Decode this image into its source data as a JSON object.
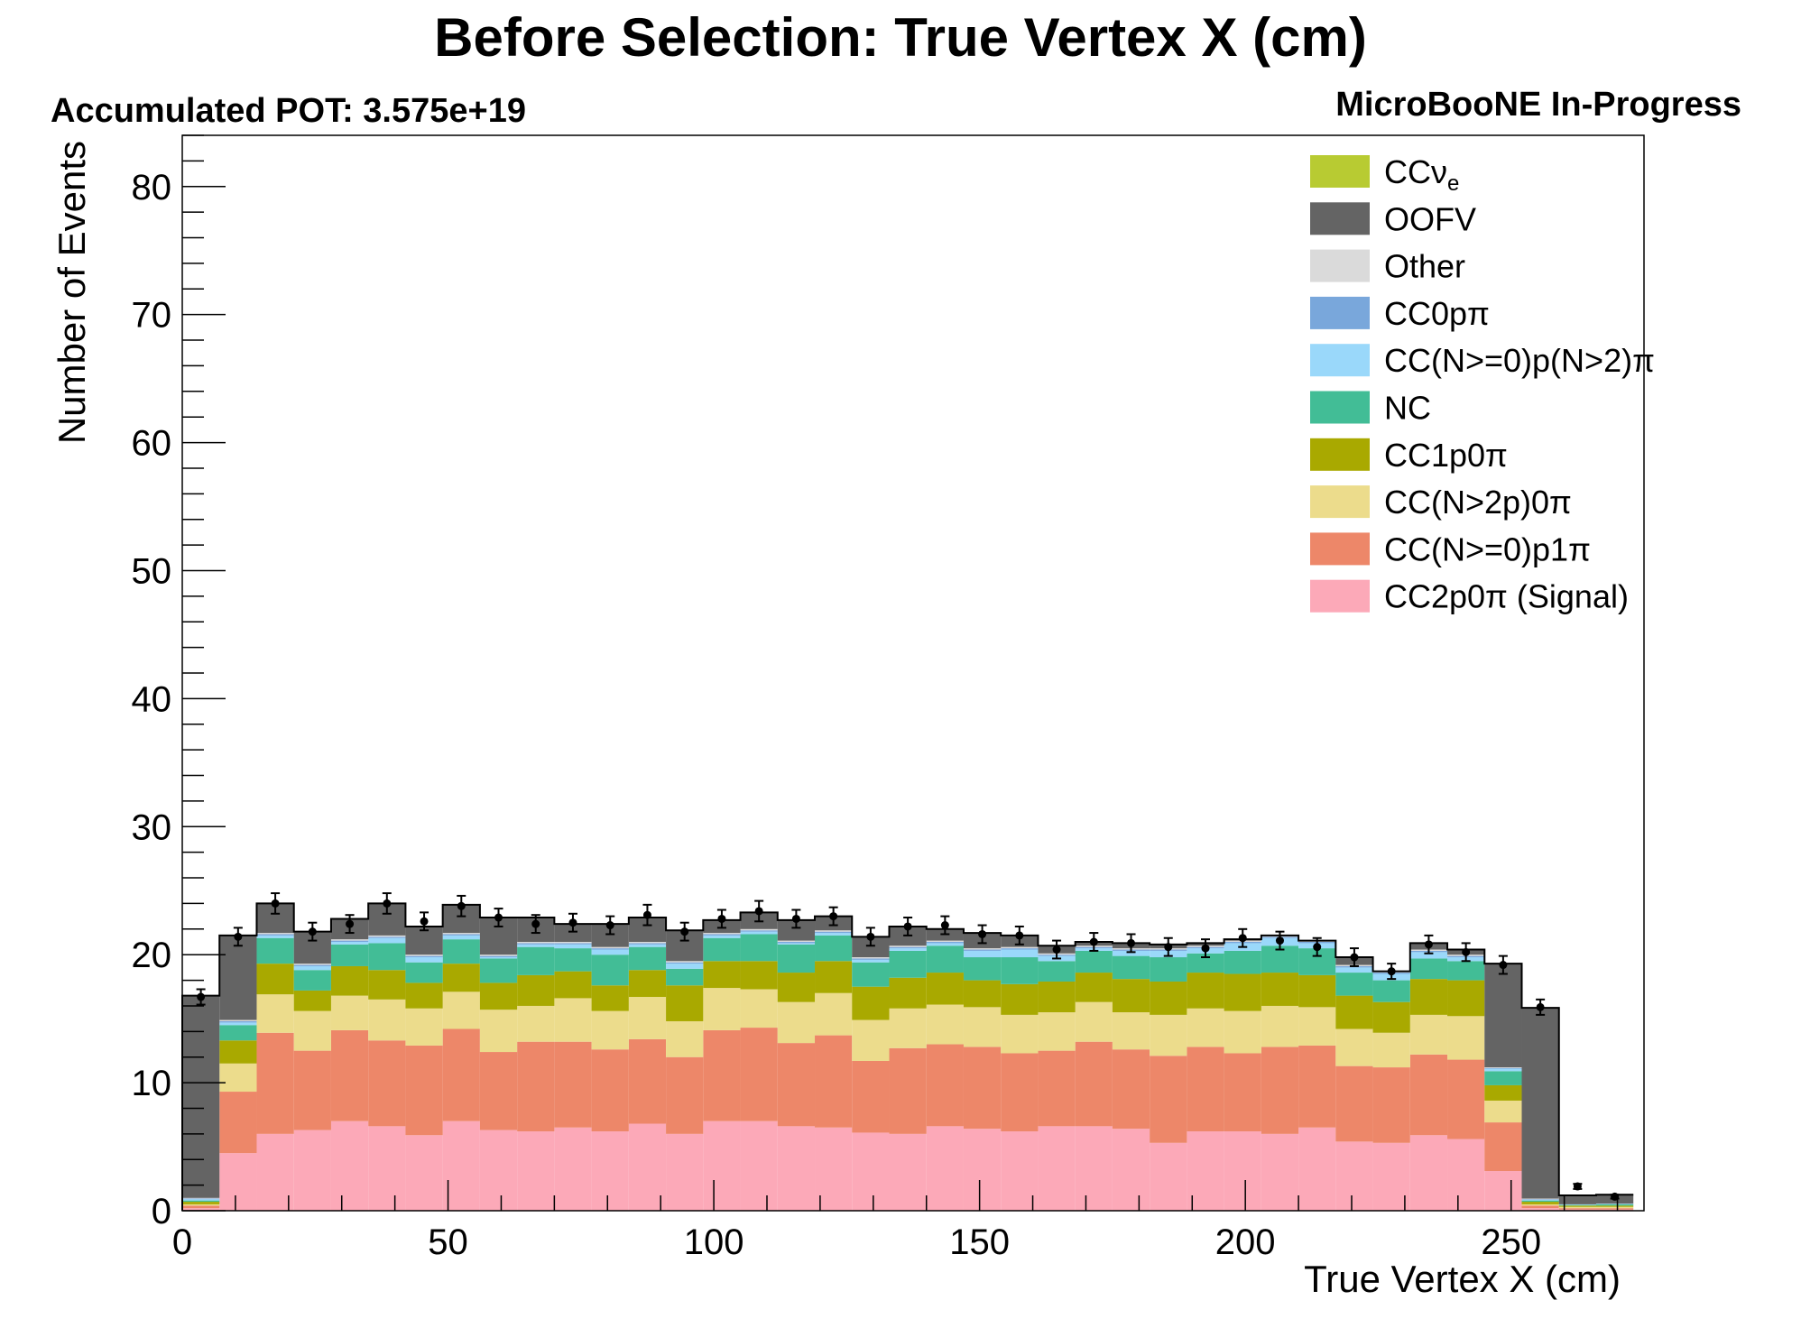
{
  "chart_data": {
    "type": "bar",
    "stacked": true,
    "title": "Before Selection: True Vertex X (cm)",
    "pot_label": "Accumulated POT: 3.575e+19",
    "experiment_label": "MicroBooNE In-Progress",
    "xlabel": "True Vertex X (cm)",
    "ylabel": "Number of Events",
    "xlim": [
      0,
      275
    ],
    "ylim": [
      0,
      84
    ],
    "x_ticks": [
      0,
      50,
      100,
      150,
      200,
      250
    ],
    "y_ticks": [
      0,
      10,
      20,
      30,
      40,
      50,
      60,
      70,
      80
    ],
    "legend_position": "top-right",
    "bin_edges": [
      0,
      7,
      14,
      21,
      28,
      35,
      42,
      49,
      56,
      63,
      70,
      77,
      84,
      91,
      98,
      105,
      112,
      119,
      126,
      133,
      140,
      147,
      154,
      161,
      168,
      175,
      182,
      189,
      196,
      203,
      210,
      217,
      224,
      231,
      238,
      245,
      252,
      259,
      266,
      273
    ],
    "series": [
      {
        "name": "CC2p0π (Signal)",
        "color": "#fca9b8",
        "values": [
          0.2,
          4.5,
          6.0,
          6.3,
          7.0,
          6.6,
          5.9,
          7.0,
          6.3,
          6.2,
          6.5,
          6.2,
          6.8,
          6.0,
          7.0,
          7.0,
          6.6,
          6.5,
          6.1,
          6.0,
          6.6,
          6.4,
          6.2,
          6.6,
          6.6,
          6.4,
          5.3,
          6.2,
          6.2,
          6.0,
          6.5,
          5.4,
          5.3,
          5.9,
          5.6,
          3.1,
          0.2,
          0.1,
          0.1
        ]
      },
      {
        "name": "CC(N>=0)p1π",
        "color": "#ed8769",
        "values": [
          0.2,
          4.8,
          7.9,
          6.2,
          7.1,
          6.7,
          7.0,
          7.2,
          6.1,
          7.0,
          6.7,
          6.4,
          6.6,
          6.0,
          7.1,
          7.3,
          6.5,
          7.2,
          5.6,
          6.7,
          6.4,
          6.4,
          6.1,
          5.9,
          6.6,
          6.2,
          6.8,
          6.6,
          6.1,
          6.8,
          6.4,
          5.9,
          5.9,
          6.3,
          6.2,
          3.8,
          0.2,
          0.1,
          0.1
        ]
      },
      {
        "name": "CC(N>2p)0π",
        "color": "#ecdc8c",
        "values": [
          0.1,
          2.2,
          3.0,
          3.1,
          2.7,
          3.2,
          2.9,
          2.9,
          3.3,
          2.8,
          3.4,
          3.0,
          3.3,
          2.8,
          3.3,
          3.0,
          3.2,
          3.3,
          3.2,
          3.1,
          3.1,
          3.1,
          3.0,
          3.0,
          3.1,
          2.9,
          3.2,
          3.0,
          3.3,
          3.2,
          3.0,
          2.9,
          2.7,
          3.1,
          3.4,
          1.7,
          0.1,
          0.1,
          0.1
        ]
      },
      {
        "name": "CC1p0π",
        "color": "#a9a900",
        "values": [
          0.2,
          1.8,
          2.4,
          1.6,
          2.3,
          2.3,
          2.0,
          2.2,
          2.1,
          2.4,
          2.1,
          2.0,
          2.1,
          2.8,
          2.1,
          2.2,
          2.3,
          2.5,
          2.6,
          2.4,
          2.5,
          2.1,
          2.4,
          2.4,
          2.3,
          2.6,
          2.6,
          2.8,
          2.9,
          2.6,
          2.5,
          2.6,
          2.4,
          2.8,
          2.8,
          1.2,
          0.2,
          0.1,
          0.1
        ]
      },
      {
        "name": "NC",
        "color": "#42bd96",
        "values": [
          0.1,
          1.2,
          2.0,
          1.6,
          1.7,
          2.1,
          1.6,
          1.9,
          1.9,
          2.2,
          1.8,
          2.4,
          1.8,
          1.3,
          1.8,
          2.1,
          2.2,
          2.0,
          1.9,
          2.1,
          2.1,
          1.8,
          2.1,
          1.6,
          1.7,
          1.8,
          1.9,
          1.5,
          1.8,
          2.1,
          2.1,
          1.8,
          1.7,
          1.6,
          1.5,
          1.1,
          0.1,
          0.05,
          0.1
        ]
      },
      {
        "name": "CC(N>=0)p(N>2)π",
        "color": "#9ad8fa",
        "values": [
          0.1,
          0.2,
          0.2,
          0.3,
          0.2,
          0.4,
          0.4,
          0.3,
          0.1,
          0.2,
          0.3,
          0.4,
          0.2,
          0.4,
          0.2,
          0.2,
          0.1,
          0.2,
          0.2,
          0.2,
          0.2,
          0.5,
          0.6,
          0.4,
          0.2,
          0.4,
          0.5,
          0.4,
          0.6,
          0.6,
          0.4,
          0.4,
          0.5,
          0.5,
          0.3,
          0.2,
          0.05,
          0.05,
          0.05
        ]
      },
      {
        "name": "CC0pπ",
        "color": "#79a7db",
        "values": [
          0.05,
          0.1,
          0.1,
          0.1,
          0.1,
          0.1,
          0.1,
          0.1,
          0.1,
          0.1,
          0.1,
          0.1,
          0.1,
          0.1,
          0.1,
          0.1,
          0.1,
          0.1,
          0.1,
          0.1,
          0.1,
          0.1,
          0.1,
          0.1,
          0.1,
          0.1,
          0.1,
          0.1,
          0.1,
          0.1,
          0.1,
          0.1,
          0.1,
          0.1,
          0.1,
          0.05,
          0.05,
          0.0,
          0.0
        ]
      },
      {
        "name": "Other",
        "color": "#dadada",
        "values": [
          0.05,
          0.1,
          0.1,
          0.1,
          0.1,
          0.1,
          0.1,
          0.1,
          0.1,
          0.1,
          0.1,
          0.1,
          0.1,
          0.1,
          0.1,
          0.1,
          0.1,
          0.1,
          0.1,
          0.1,
          0.1,
          0.1,
          0.1,
          0.1,
          0.1,
          0.1,
          0.1,
          0.1,
          0.1,
          0.1,
          0.1,
          0.1,
          0.1,
          0.1,
          0.1,
          0.05,
          0.05,
          0.0,
          0.0
        ]
      },
      {
        "name": "OOFV",
        "color": "#646464",
        "values": [
          15.8,
          6.6,
          2.3,
          2.5,
          1.6,
          2.5,
          2.2,
          2.2,
          2.9,
          1.9,
          1.4,
          1.8,
          1.9,
          2.4,
          1.0,
          1.3,
          1.6,
          1.1,
          1.6,
          1.5,
          0.9,
          1.2,
          0.9,
          0.6,
          0.3,
          0.4,
          0.3,
          0.2,
          0.1,
          0.0,
          0.0,
          0.6,
          0.0,
          0.5,
          0.4,
          8.1,
          14.9,
          0.7,
          0.7
        ]
      },
      {
        "name": "CCνe",
        "color": "#b8cb32",
        "label_main": "CCν",
        "label_sub": "e",
        "values": [
          0,
          0,
          0,
          0,
          0,
          0,
          0,
          0,
          0,
          0,
          0,
          0,
          0,
          0,
          0,
          0,
          0,
          0,
          0,
          0,
          0,
          0,
          0,
          0,
          0,
          0,
          0,
          0,
          0,
          0,
          0,
          0,
          0,
          0,
          0,
          0,
          0,
          0,
          0
        ]
      }
    ],
    "data_points": {
      "values": [
        16.7,
        21.4,
        24.0,
        21.8,
        22.4,
        24.0,
        22.6,
        23.8,
        22.9,
        22.4,
        22.5,
        22.3,
        23.1,
        21.8,
        22.8,
        23.4,
        22.8,
        23.0,
        21.4,
        22.2,
        22.3,
        21.6,
        21.5,
        20.4,
        21.0,
        20.9,
        20.6,
        20.5,
        21.3,
        21.1,
        20.6,
        19.8,
        18.7,
        20.8,
        20.2,
        19.2,
        15.9,
        1.9,
        1.1
      ],
      "errors": [
        0.6,
        0.7,
        0.8,
        0.7,
        0.7,
        0.8,
        0.7,
        0.8,
        0.7,
        0.7,
        0.7,
        0.7,
        0.8,
        0.7,
        0.7,
        0.8,
        0.7,
        0.7,
        0.7,
        0.7,
        0.7,
        0.7,
        0.7,
        0.7,
        0.7,
        0.7,
        0.7,
        0.7,
        0.7,
        0.7,
        0.7,
        0.7,
        0.6,
        0.7,
        0.7,
        0.7,
        0.6,
        0.2,
        0.15
      ]
    }
  }
}
